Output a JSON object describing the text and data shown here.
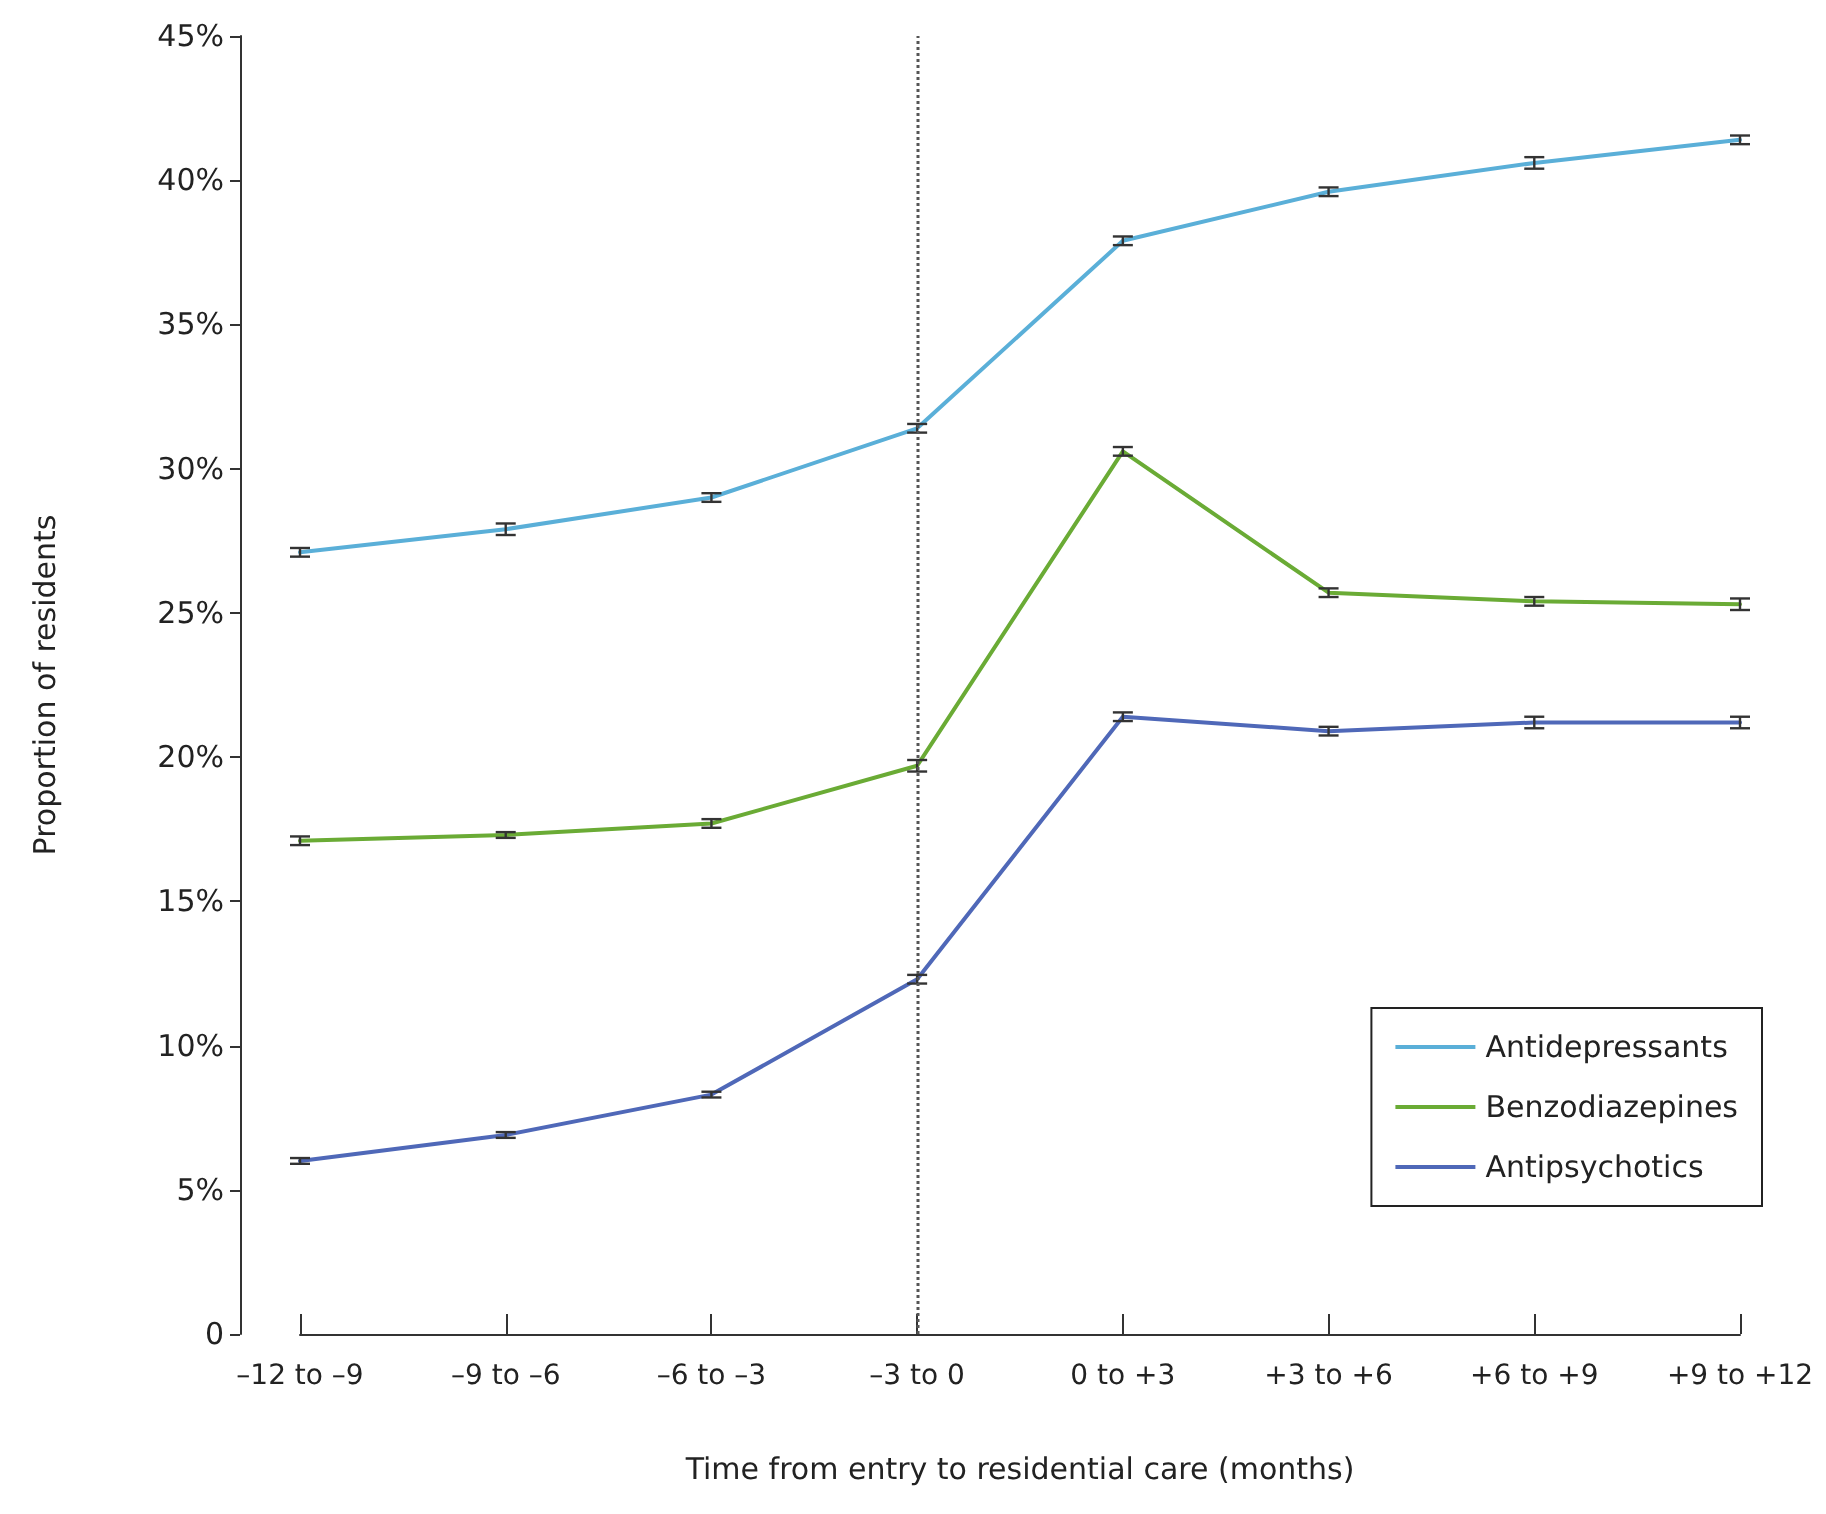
{
  "chart_data": {
    "type": "line",
    "xlabel": "Time from entry to residential care (months)",
    "ylabel": "Proportion of residents",
    "categories": [
      "–12 to –9",
      "–9 to –6",
      "–6 to –3",
      "–3 to 0",
      "0 to +3",
      "+3 to +6",
      "+6 to +9",
      "+9 to +12"
    ],
    "series": [
      {
        "name": "Antidepressants",
        "color": "#5aafd8",
        "values": [
          27.1,
          27.9,
          29.0,
          31.4,
          37.9,
          39.6,
          40.6,
          41.4
        ],
        "errors": [
          0.15,
          0.2,
          0.15,
          0.15,
          0.15,
          0.15,
          0.2,
          0.15
        ]
      },
      {
        "name": "Benzodiazepines",
        "color": "#6aab35",
        "values": [
          17.1,
          17.3,
          17.7,
          19.7,
          30.6,
          25.7,
          25.4,
          25.3
        ],
        "errors": [
          0.15,
          0.1,
          0.15,
          0.2,
          0.15,
          0.15,
          0.15,
          0.2
        ]
      },
      {
        "name": "Antipsychotics",
        "color": "#4f68b8",
        "values": [
          6.0,
          6.9,
          8.3,
          12.3,
          21.4,
          20.9,
          21.2,
          21.2
        ],
        "errors": [
          0.1,
          0.1,
          0.1,
          0.15,
          0.15,
          0.15,
          0.2,
          0.2
        ]
      }
    ],
    "ylim": [
      0,
      45
    ],
    "yticks": [
      {
        "value": 0,
        "label": "0"
      },
      {
        "value": 5,
        "label": "5%"
      },
      {
        "value": 10,
        "label": "10%"
      },
      {
        "value": 15,
        "label": "15%"
      },
      {
        "value": 20,
        "label": "20%"
      },
      {
        "value": 25,
        "label": "25%"
      },
      {
        "value": 30,
        "label": "30%"
      },
      {
        "value": 35,
        "label": "35%"
      },
      {
        "value": 40,
        "label": "40%"
      },
      {
        "value": 45,
        "label": "45%"
      }
    ],
    "ref_lines": [
      {
        "axis": "x",
        "value": "–3 to 0",
        "line_style": "dotted",
        "color": "#555555"
      }
    ],
    "legend": "bottom right",
    "grid": false,
    "marker": "none",
    "line_style": "solid"
  }
}
